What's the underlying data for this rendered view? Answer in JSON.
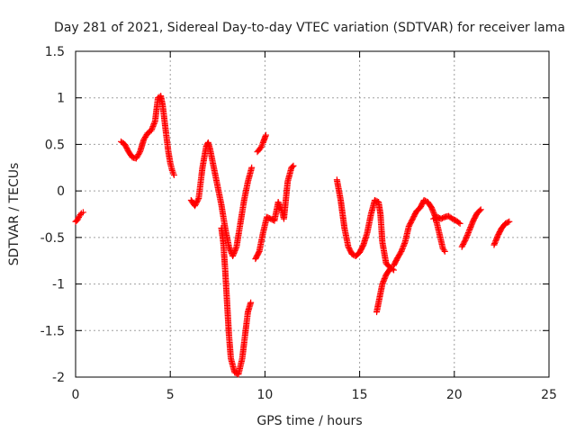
{
  "chart_data": {
    "type": "scatter",
    "title": "Day 281 of 2021, Sidereal Day-to-day VTEC variation (SDTVAR) for receiver lama",
    "xlabel": "GPS time / hours",
    "ylabel": "SDTVAR / TECUs",
    "xlim": [
      0,
      25
    ],
    "ylim": [
      -2,
      1.5
    ],
    "x_ticks": [
      0,
      5,
      10,
      15,
      20,
      25
    ],
    "x_tick_labels": [
      "0",
      "5",
      "10",
      "15",
      "20",
      "25"
    ],
    "y_ticks": [
      -2,
      -1.5,
      -1,
      -0.5,
      0,
      0.5,
      1,
      1.5
    ],
    "y_tick_labels": [
      "-2",
      "-1.5",
      "-1",
      "-0.5",
      "0",
      "0.5",
      "1",
      "1.5"
    ],
    "grid": true,
    "marker": "+",
    "color": "#ff0000",
    "series": [
      {
        "segments": [
          [
            [
              0.0,
              -0.33
            ],
            [
              0.1,
              -0.31
            ],
            [
              0.2,
              -0.27
            ],
            [
              0.3,
              -0.24
            ],
            [
              0.4,
              -0.23
            ]
          ],
          [
            [
              2.4,
              0.53
            ],
            [
              2.6,
              0.5
            ],
            [
              2.8,
              0.42
            ],
            [
              3.0,
              0.36
            ],
            [
              3.2,
              0.35
            ],
            [
              3.4,
              0.42
            ],
            [
              3.6,
              0.55
            ],
            [
              3.8,
              0.62
            ],
            [
              4.0,
              0.65
            ],
            [
              4.2,
              0.75
            ],
            [
              4.35,
              1.0
            ],
            [
              4.5,
              1.02
            ],
            [
              4.6,
              0.92
            ],
            [
              4.7,
              0.75
            ],
            [
              4.8,
              0.58
            ],
            [
              4.9,
              0.42
            ],
            [
              5.0,
              0.3
            ],
            [
              5.1,
              0.22
            ],
            [
              5.2,
              0.17
            ]
          ],
          [
            [
              6.1,
              -0.1
            ],
            [
              6.3,
              -0.16
            ],
            [
              6.5,
              -0.08
            ],
            [
              6.7,
              0.25
            ],
            [
              6.9,
              0.48
            ],
            [
              7.0,
              0.52
            ],
            [
              7.1,
              0.45
            ],
            [
              7.3,
              0.25
            ],
            [
              7.5,
              0.05
            ],
            [
              7.7,
              -0.15
            ],
            [
              7.9,
              -0.4
            ],
            [
              8.1,
              -0.6
            ],
            [
              8.3,
              -0.7
            ],
            [
              8.5,
              -0.6
            ],
            [
              8.7,
              -0.35
            ],
            [
              8.9,
              -0.1
            ],
            [
              9.1,
              0.1
            ],
            [
              9.3,
              0.25
            ]
          ],
          [
            [
              7.7,
              -0.4
            ],
            [
              7.8,
              -0.55
            ],
            [
              7.9,
              -0.85
            ],
            [
              8.0,
              -1.2
            ],
            [
              8.1,
              -1.55
            ],
            [
              8.2,
              -1.8
            ],
            [
              8.4,
              -1.95
            ],
            [
              8.6,
              -1.97
            ],
            [
              8.8,
              -1.8
            ],
            [
              8.95,
              -1.55
            ],
            [
              9.1,
              -1.3
            ],
            [
              9.25,
              -1.2
            ]
          ],
          [
            [
              9.6,
              0.42
            ],
            [
              9.8,
              0.47
            ],
            [
              9.9,
              0.52
            ],
            [
              10.05,
              0.6
            ]
          ],
          [
            [
              9.5,
              -0.73
            ],
            [
              9.7,
              -0.65
            ],
            [
              9.9,
              -0.45
            ],
            [
              10.1,
              -0.28
            ],
            [
              10.3,
              -0.3
            ],
            [
              10.5,
              -0.32
            ],
            [
              10.7,
              -0.12
            ],
            [
              10.9,
              -0.22
            ],
            [
              11.0,
              -0.3
            ],
            [
              11.1,
              -0.1
            ],
            [
              11.2,
              0.1
            ],
            [
              11.4,
              0.25
            ],
            [
              11.5,
              0.27
            ]
          ],
          [
            [
              13.8,
              0.12
            ],
            [
              14.0,
              -0.1
            ],
            [
              14.2,
              -0.4
            ],
            [
              14.4,
              -0.6
            ],
            [
              14.6,
              -0.68
            ],
            [
              14.8,
              -0.7
            ],
            [
              15.0,
              -0.66
            ],
            [
              15.2,
              -0.58
            ],
            [
              15.4,
              -0.45
            ],
            [
              15.6,
              -0.25
            ],
            [
              15.8,
              -0.1
            ],
            [
              16.0,
              -0.12
            ],
            [
              16.1,
              -0.25
            ],
            [
              16.2,
              -0.55
            ],
            [
              16.4,
              -0.78
            ],
            [
              16.6,
              -0.82
            ],
            [
              16.8,
              -0.85
            ]
          ],
          [
            [
              15.9,
              -1.3
            ],
            [
              16.05,
              -1.15
            ],
            [
              16.2,
              -1.0
            ],
            [
              16.4,
              -0.9
            ],
            [
              16.6,
              -0.84
            ]
          ],
          [
            [
              16.8,
              -0.8
            ],
            [
              17.0,
              -0.72
            ],
            [
              17.2,
              -0.65
            ],
            [
              17.4,
              -0.55
            ],
            [
              17.6,
              -0.38
            ],
            [
              17.8,
              -0.3
            ],
            [
              18.0,
              -0.22
            ],
            [
              18.2,
              -0.18
            ],
            [
              18.4,
              -0.1
            ],
            [
              18.6,
              -0.12
            ],
            [
              18.8,
              -0.18
            ],
            [
              19.0,
              -0.28
            ],
            [
              19.2,
              -0.45
            ],
            [
              19.4,
              -0.62
            ],
            [
              19.5,
              -0.65
            ]
          ],
          [
            [
              18.9,
              -0.3
            ],
            [
              19.1,
              -0.28
            ],
            [
              19.3,
              -0.3
            ],
            [
              19.5,
              -0.28
            ],
            [
              19.7,
              -0.27
            ],
            [
              19.9,
              -0.3
            ],
            [
              20.1,
              -0.32
            ],
            [
              20.3,
              -0.35
            ]
          ],
          [
            [
              20.4,
              -0.6
            ],
            [
              20.6,
              -0.52
            ],
            [
              20.8,
              -0.42
            ],
            [
              21.0,
              -0.32
            ],
            [
              21.2,
              -0.24
            ],
            [
              21.4,
              -0.2
            ]
          ],
          [
            [
              22.1,
              -0.58
            ],
            [
              22.3,
              -0.48
            ],
            [
              22.5,
              -0.4
            ],
            [
              22.7,
              -0.35
            ],
            [
              22.9,
              -0.33
            ]
          ]
        ]
      }
    ]
  }
}
